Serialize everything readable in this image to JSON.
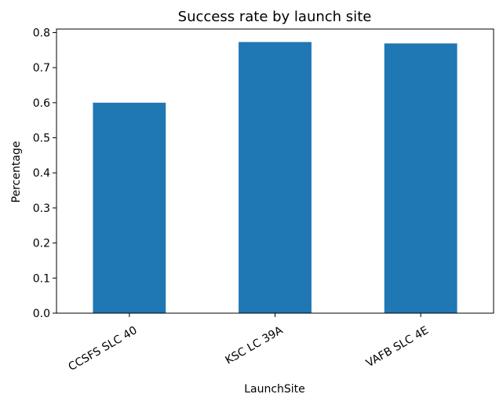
{
  "chart_data": {
    "type": "bar",
    "title": "Success rate by launch site",
    "xlabel": "LaunchSite",
    "ylabel": "Percentage",
    "categories": [
      "CCSFS SLC 40",
      "KSC LC 39A",
      "VAFB SLC 4E"
    ],
    "values": [
      0.6,
      0.773,
      0.769
    ],
    "ylim": [
      0,
      0.81
    ],
    "yticks": [
      0.0,
      0.1,
      0.2,
      0.3,
      0.4,
      0.5,
      0.6,
      0.7,
      0.8
    ],
    "ytick_labels": [
      "0.0",
      "0.1",
      "0.2",
      "0.3",
      "0.4",
      "0.5",
      "0.6",
      "0.7",
      "0.8"
    ],
    "bar_color": "#1f77b4",
    "grid": false,
    "legend": false
  }
}
